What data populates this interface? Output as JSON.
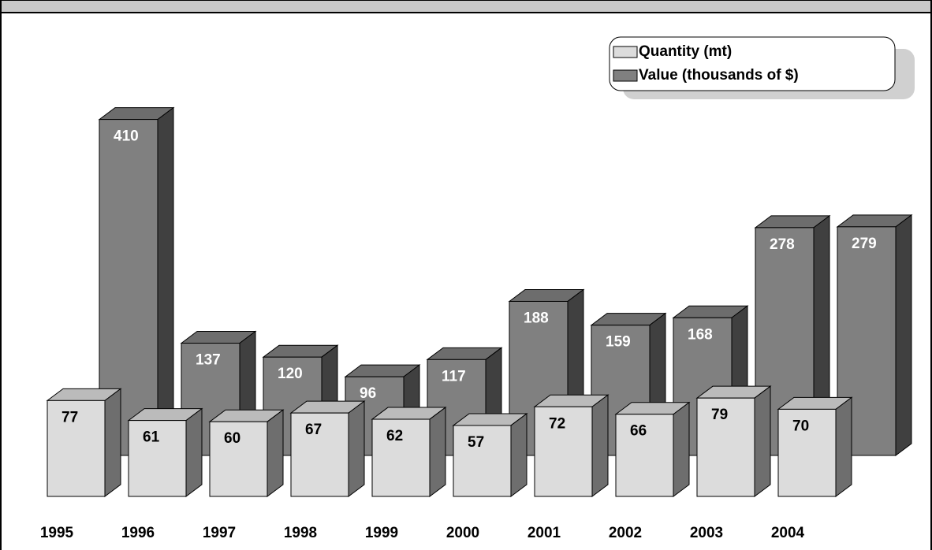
{
  "chart_data": {
    "type": "bar3d",
    "categories": [
      "1995",
      "1996",
      "1997",
      "1998",
      "1999",
      "2000",
      "2001",
      "2002",
      "2003",
      "2004"
    ],
    "series": [
      {
        "name": "Quantity (mt)",
        "color": "#dcdcdc",
        "values": [
          77,
          61,
          60,
          67,
          62,
          57,
          72,
          66,
          79,
          70
        ]
      },
      {
        "name": "Value (thousands of $)",
        "color": "#808080",
        "values": [
          410,
          137,
          120,
          96,
          117,
          188,
          159,
          168,
          278,
          279
        ]
      }
    ]
  }
}
